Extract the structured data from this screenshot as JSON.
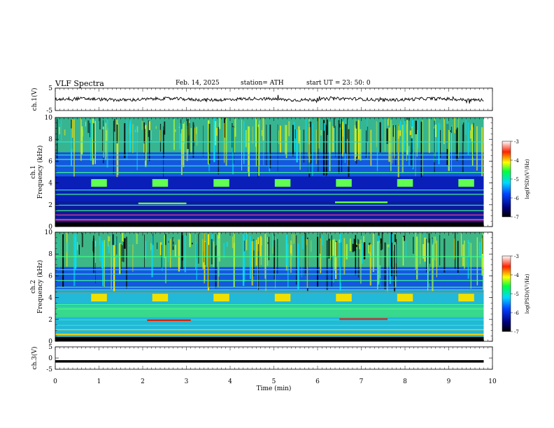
{
  "header": {
    "title": "VLF  Spectra",
    "date": "Feb. 14, 2025",
    "station": "station= ATH",
    "start": "start  UT  =   23: 50: 0"
  },
  "chart_data": [
    {
      "type": "line",
      "ylabel": "ch.1(V)",
      "ylim": [
        -5,
        5
      ],
      "yticks": [
        "5",
        "-5"
      ],
      "note": "noisy waveform near 0 V over 0–9.8 min"
    },
    {
      "type": "heatmap",
      "ylabel": "ch.1  Frequency  (kHz)",
      "ylim": [
        0,
        10
      ],
      "yticks": [
        "0",
        "2",
        "4",
        "6",
        "8",
        "10"
      ],
      "colorbar": {
        "label": "log(PSD)(V²/Hz)",
        "ticks": [
          "-3",
          "-4",
          "-5",
          "-6",
          "-7"
        ],
        "range": [
          -7,
          -3
        ]
      },
      "tone_bursts_khz": 4,
      "tone_burst_times_min": [
        1.0,
        2.4,
        3.8,
        5.2,
        6.6,
        8.0,
        9.4
      ]
    },
    {
      "type": "heatmap",
      "ylabel": "ch.2  Frequency  (kHz)",
      "ylim": [
        0,
        10
      ],
      "yticks": [
        "0",
        "2",
        "4",
        "6",
        "8",
        "10"
      ],
      "colorbar": {
        "label": "log(PSD)(V²/Hz)",
        "ticks": [
          "-3",
          "-4",
          "-5",
          "-6",
          "-7"
        ],
        "range": [
          -7,
          -3
        ]
      },
      "tone_bursts_khz": 4,
      "tone_burst_times_min": [
        1.0,
        2.4,
        3.8,
        5.2,
        6.6,
        8.0,
        9.4
      ]
    },
    {
      "type": "line",
      "ylabel": "ch.3(V)",
      "ylim": [
        -5,
        5
      ],
      "yticks": [
        "5",
        "0",
        "-5"
      ],
      "value_v": -1.5
    }
  ],
  "xaxis": {
    "label": "Time  (min)",
    "ticks": [
      "0",
      "1",
      "2",
      "3",
      "4",
      "5",
      "6",
      "7",
      "8",
      "9",
      "10"
    ],
    "range": [
      0,
      10
    ],
    "data_end_min": 9.8
  }
}
